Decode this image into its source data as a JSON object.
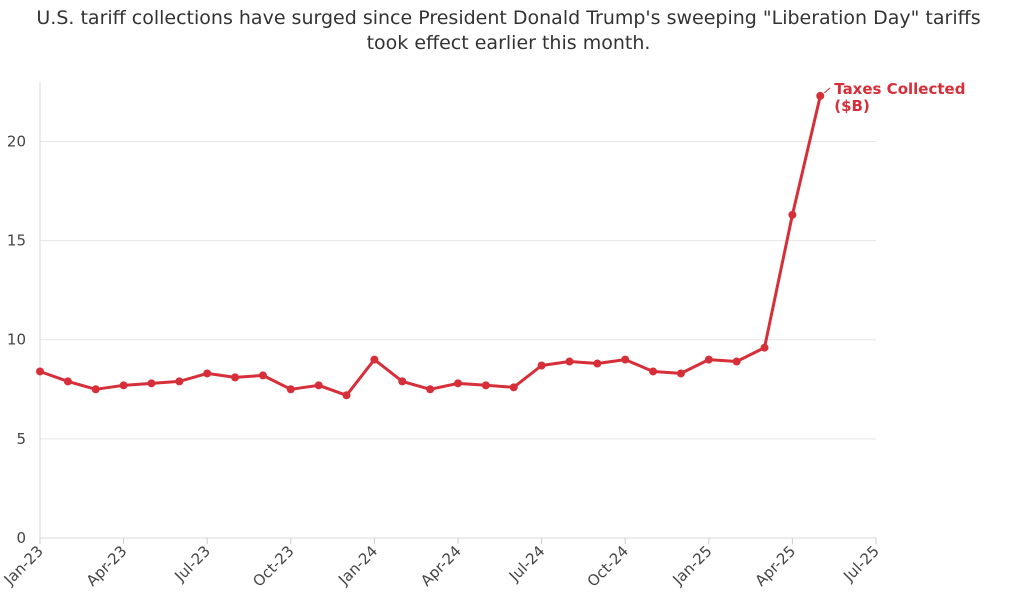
{
  "chart_data": {
    "type": "line",
    "title_lines": [
      "U.S. tariff collections have surged since President Donald Trump's sweeping \"Liberation Day\" tariffs",
      "took effect earlier this month."
    ],
    "xlabel": "",
    "ylabel": "",
    "ylim": [
      0,
      23
    ],
    "y_ticks": [
      0,
      5,
      10,
      15,
      20
    ],
    "x_tick_labels": [
      "Jan-23",
      "Apr-23",
      "Jul-23",
      "Oct-23",
      "Jan-24",
      "Apr-24",
      "Jul-24",
      "Oct-24",
      "Jan-25",
      "Apr-25",
      "Jul-25"
    ],
    "grid": true,
    "series": [
      {
        "name": "Taxes Collected ($B)",
        "label_lines": [
          "Taxes Collected",
          "($B)"
        ],
        "color": "#d62f3a",
        "x": [
          "Jan-23",
          "Feb-23",
          "Mar-23",
          "Apr-23",
          "May-23",
          "Jun-23",
          "Jul-23",
          "Aug-23",
          "Sep-23",
          "Oct-23",
          "Nov-23",
          "Dec-23",
          "Jan-24",
          "Feb-24",
          "Mar-24",
          "Apr-24",
          "May-24",
          "Jun-24",
          "Jul-24",
          "Aug-24",
          "Sep-24",
          "Oct-24",
          "Nov-24",
          "Dec-24",
          "Jan-25",
          "Feb-25",
          "Mar-25",
          "Apr-25",
          "May-25"
        ],
        "values": [
          8.4,
          7.9,
          7.5,
          7.7,
          7.8,
          7.9,
          8.3,
          8.1,
          8.2,
          7.5,
          7.7,
          7.2,
          9.0,
          7.9,
          7.5,
          7.8,
          7.7,
          7.6,
          8.7,
          8.9,
          8.8,
          9.0,
          8.4,
          8.3,
          9.0,
          8.9,
          9.6,
          16.3,
          22.3
        ]
      }
    ]
  }
}
